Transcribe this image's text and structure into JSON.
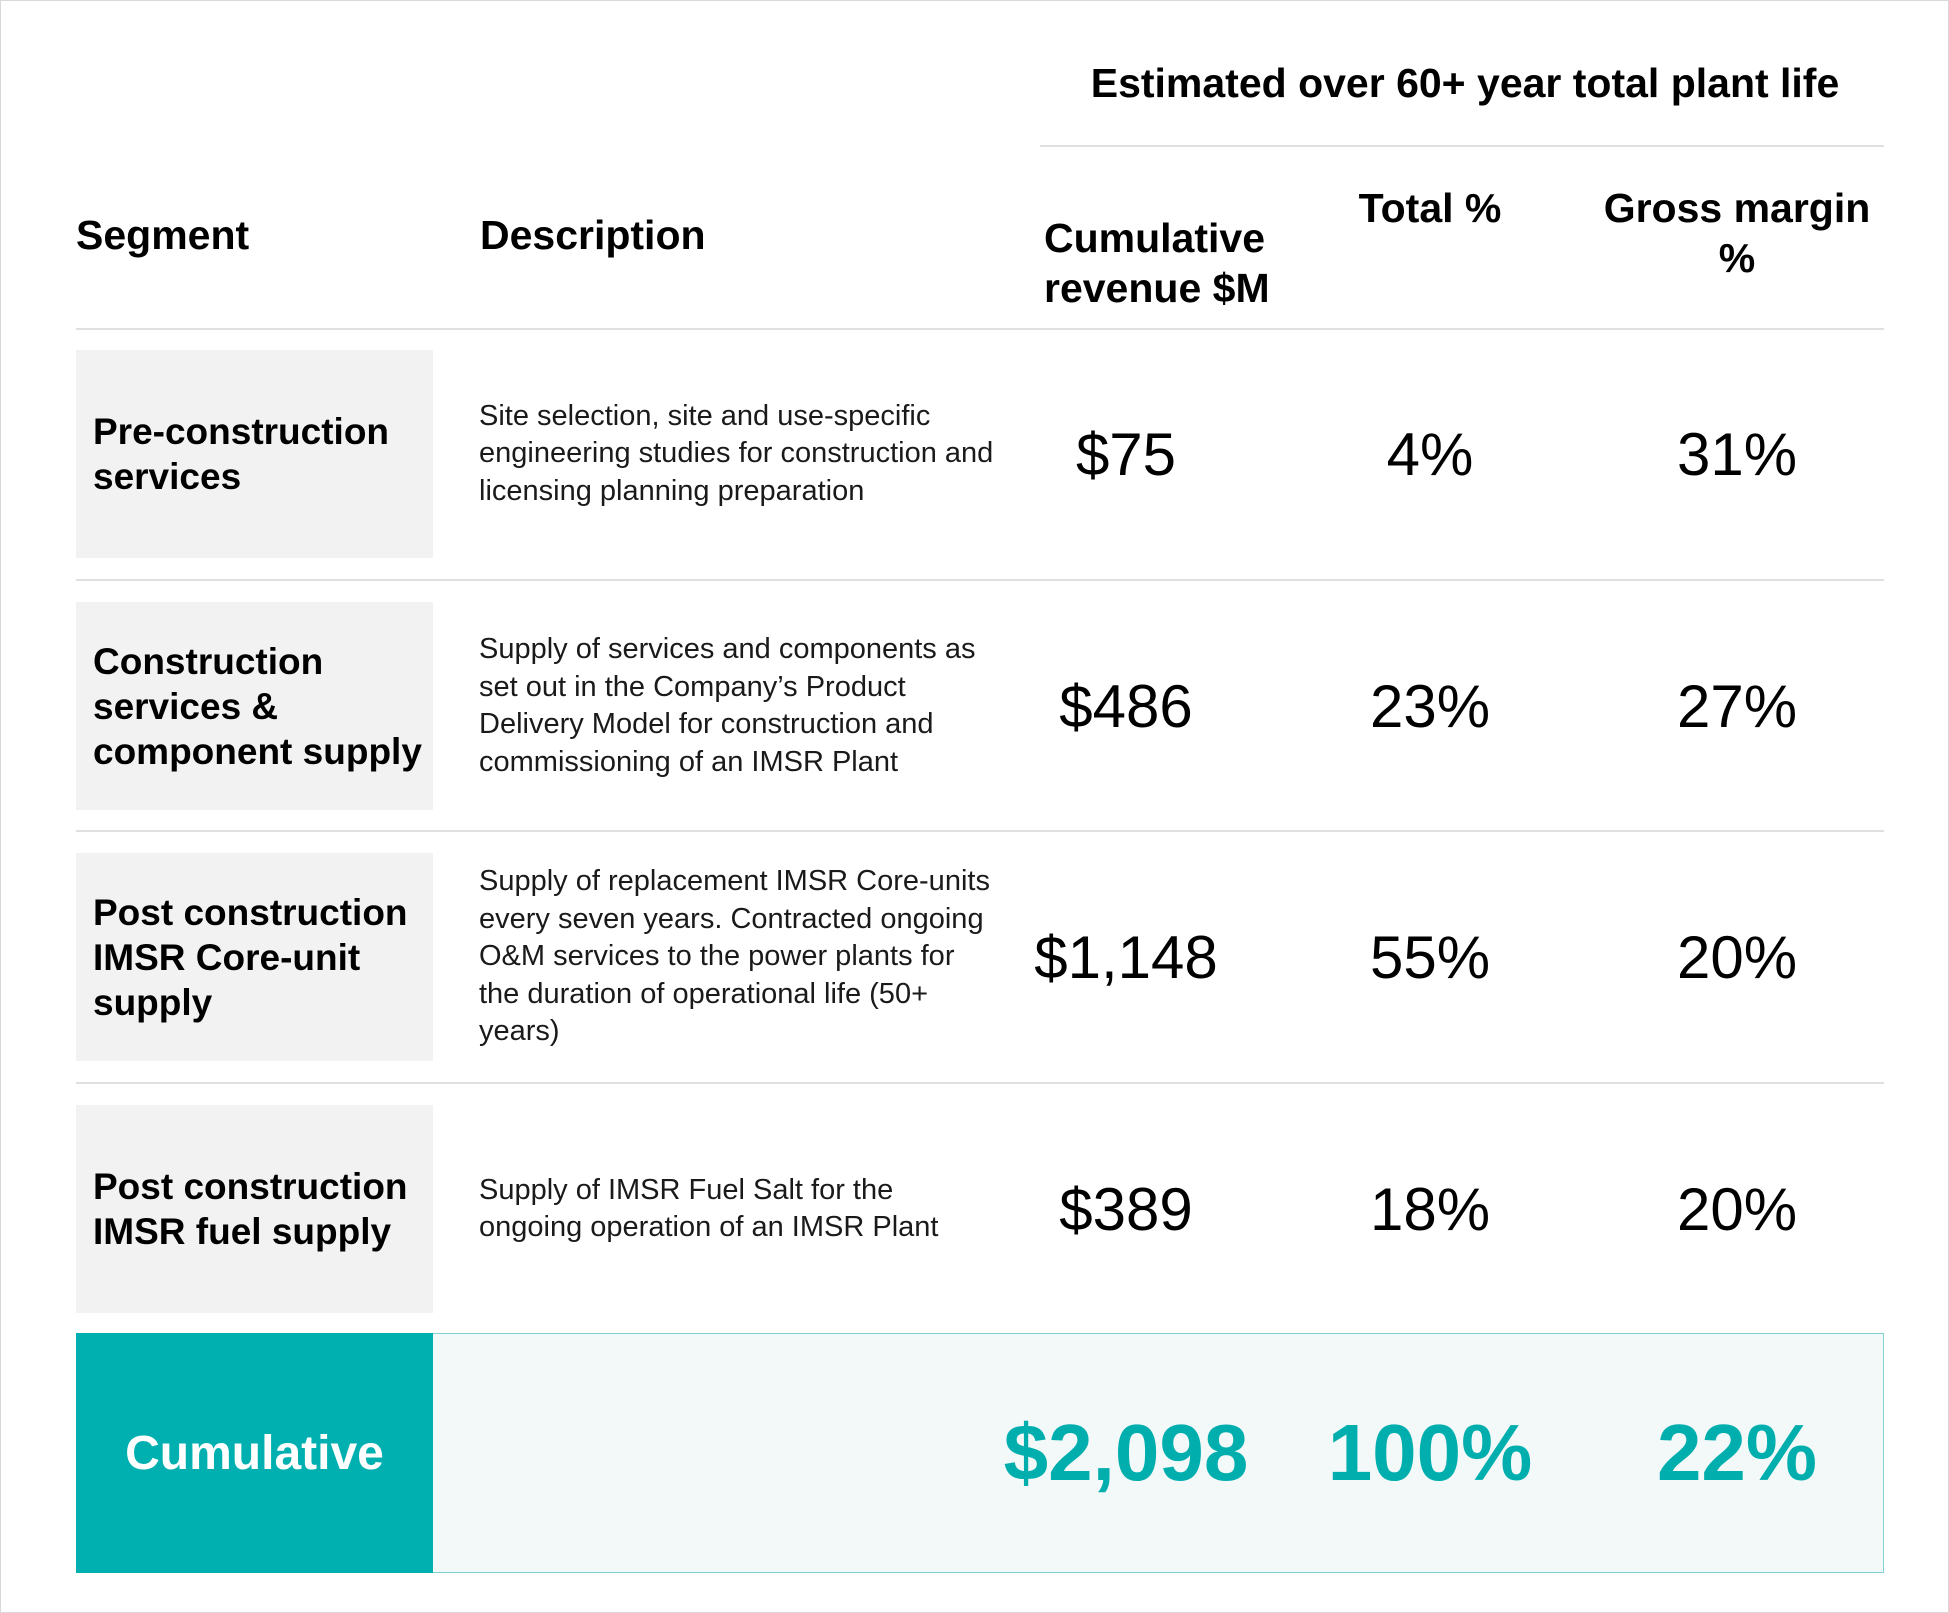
{
  "header": {
    "super_title": "Estimated over 60+ year total plant life",
    "columns": {
      "segment": "Segment",
      "description": "Description",
      "revenue": "Cumulative revenue $M",
      "total": "Total %",
      "margin": "Gross margin %"
    }
  },
  "rows": [
    {
      "segment": "Pre-construction services",
      "description": "Site selection, site and use-specific engineering studies for construction and licensing planning preparation",
      "revenue": "$75",
      "total": "4%",
      "margin": "31%"
    },
    {
      "segment": "Construction services & component supply",
      "description": "Supply of services and components as set out in the Company’s Product Delivery Model for construction and commissioning of an IMSR Plant",
      "revenue": "$486",
      "total": "23%",
      "margin": "27%"
    },
    {
      "segment": "Post construction IMSR Core-unit supply",
      "description": "Supply of replacement IMSR Core-units every seven years. Contracted ongoing O&M services to the power plants for the duration of operational life (50+ years)",
      "revenue": "$1,148",
      "total": "55%",
      "margin": "20%"
    },
    {
      "segment": "Post construction IMSR fuel supply",
      "description": "Supply of IMSR Fuel Salt for the ongoing operation of an IMSR Plant",
      "revenue": "$389",
      "total": "18%",
      "margin": "20%"
    }
  ],
  "cumulative": {
    "label": "Cumulative",
    "revenue": "$2,098",
    "total": "100%",
    "margin": "22%"
  },
  "colors": {
    "accent": "#00b0b0",
    "accent_text": "#00aeae",
    "segment_bg": "#f2f2f2",
    "panel_bg": "#f3f8f8"
  }
}
